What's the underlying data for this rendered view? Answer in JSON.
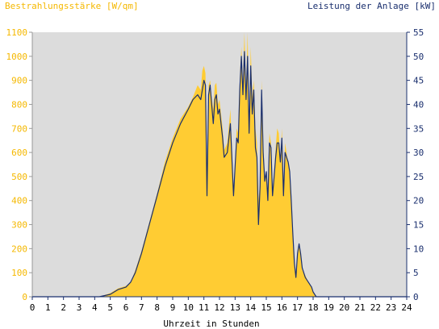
{
  "chart_data": {
    "type": "area",
    "title_left": "Bestrahlungsstärke [W/qm]",
    "title_right": "Leistung der Anlage [kW]",
    "xlabel": "Uhrzeit in Stunden",
    "xlim": [
      0,
      24
    ],
    "ylim_left": [
      0,
      1100
    ],
    "ylim_right": [
      0,
      55
    ],
    "x_ticks": [
      "0",
      "1",
      "2",
      "3",
      "4",
      "5",
      "6",
      "7",
      "8",
      "9",
      "10",
      "11",
      "12",
      "13",
      "14",
      "15",
      "16",
      "17",
      "18",
      "19",
      "20",
      "21",
      "22",
      "23",
      "24"
    ],
    "y_left_ticks": [
      "0",
      "100",
      "200",
      "300",
      "400",
      "500",
      "600",
      "700",
      "800",
      "900",
      "1000",
      "1100"
    ],
    "y_right_ticks": [
      "0",
      "5",
      "10",
      "15",
      "20",
      "25",
      "30",
      "35",
      "40",
      "45",
      "50",
      "55"
    ],
    "grid": false,
    "colors": {
      "irradiance_fill": "#ffcc33",
      "power_line": "#1a2f6e",
      "plot_background": "#dcdcdc",
      "left_axis_text": "#f5b800",
      "right_axis_text": "#1a2f6e"
    },
    "series": [
      {
        "axis": "left",
        "style": "area",
        "x": [
          4.3,
          5.0,
          5.5,
          6.0,
          6.3,
          6.6,
          7.0,
          7.5,
          8.0,
          8.5,
          9.0,
          9.5,
          10.0,
          10.3,
          10.6,
          10.8,
          10.9,
          11.0,
          11.1,
          11.2,
          11.3,
          11.4,
          11.5,
          11.6,
          11.7,
          11.8,
          11.9,
          12.0,
          12.1,
          12.2,
          12.3,
          12.5,
          12.7,
          12.9,
          13.0,
          13.1,
          13.2,
          13.3,
          13.4,
          13.5,
          13.6,
          13.7,
          13.8,
          13.9,
          14.0,
          14.1,
          14.2,
          14.3,
          14.4,
          14.5,
          14.6,
          14.7,
          14.8,
          14.9,
          15.0,
          15.1,
          15.2,
          15.3,
          15.4,
          15.5,
          15.6,
          15.7,
          15.8,
          15.9,
          16.0,
          16.1,
          16.2,
          16.3,
          16.4,
          16.5,
          16.6,
          16.7,
          16.8,
          16.9,
          17.0,
          17.1,
          17.2,
          17.3,
          17.5,
          17.7,
          17.9,
          18.0,
          18.1,
          18.2,
          18.3,
          18.4,
          18.5,
          18.6,
          18.7,
          18.8,
          18.9,
          19.0,
          19.2,
          19.5,
          19.8,
          20.0,
          20.3,
          20.5
        ],
        "y": [
          0,
          15,
          35,
          45,
          60,
          110,
          190,
          310,
          430,
          560,
          660,
          740,
          790,
          830,
          880,
          860,
          940,
          960,
          930,
          520,
          880,
          900,
          830,
          780,
          880,
          890,
          800,
          820,
          760,
          700,
          610,
          640,
          780,
          440,
          560,
          700,
          680,
          900,
          1040,
          880,
          1100,
          860,
          1100,
          720,
          1040,
          830,
          900,
          700,
          640,
          400,
          480,
          900,
          640,
          500,
          520,
          430,
          680,
          640,
          450,
          510,
          620,
          700,
          680,
          560,
          700,
          420,
          640,
          600,
          560,
          520,
          390,
          250,
          140,
          80,
          180,
          220,
          180,
          110,
          90,
          60,
          40,
          20,
          10,
          0,
          0,
          0,
          0,
          0,
          0,
          0,
          0,
          0,
          0,
          0,
          0,
          0,
          0,
          0
        ],
        "name": ""
      },
      {
        "axis": "right",
        "style": "line",
        "x": [
          4.3,
          5.0,
          5.5,
          6.0,
          6.3,
          6.6,
          7.0,
          7.5,
          8.0,
          8.5,
          9.0,
          9.5,
          10.0,
          10.3,
          10.6,
          10.8,
          10.9,
          11.0,
          11.1,
          11.2,
          11.3,
          11.4,
          11.5,
          11.6,
          11.7,
          11.8,
          11.9,
          12.0,
          12.1,
          12.2,
          12.3,
          12.5,
          12.7,
          12.9,
          13.0,
          13.1,
          13.2,
          13.3,
          13.4,
          13.5,
          13.6,
          13.7,
          13.8,
          13.9,
          14.0,
          14.1,
          14.2,
          14.3,
          14.4,
          14.5,
          14.6,
          14.7,
          14.8,
          14.9,
          15.0,
          15.1,
          15.2,
          15.3,
          15.4,
          15.5,
          15.6,
          15.7,
          15.8,
          15.9,
          16.0,
          16.1,
          16.2,
          16.3,
          16.4,
          16.5,
          16.6,
          16.7,
          16.8,
          16.9,
          17.0,
          17.1,
          17.2,
          17.3,
          17.5,
          17.7,
          17.9,
          18.0,
          18.1,
          18.2,
          18.3,
          18.4,
          18.5,
          18.6,
          18.7,
          18.8,
          18.9,
          19.0,
          19.2,
          19.5,
          19.8,
          20.0,
          20.3,
          20.5
        ],
        "y": [
          0,
          0.5,
          1.5,
          2,
          3,
          5,
          9,
          15,
          21,
          27,
          32,
          36,
          39,
          41,
          42,
          41,
          43,
          45,
          44,
          21,
          42,
          44,
          40,
          36,
          41,
          42,
          38,
          39,
          36,
          33,
          29,
          30,
          36,
          21,
          27,
          33,
          32,
          43,
          50,
          42,
          51,
          41,
          50,
          34,
          48,
          38,
          43,
          31,
          29,
          15,
          23,
          43,
          30,
          24,
          26,
          20,
          32,
          31,
          21,
          25,
          29,
          32,
          32,
          28,
          33,
          21,
          30,
          29,
          28,
          26,
          20,
          13,
          7,
          4,
          9,
          11,
          9,
          6,
          4,
          3,
          2,
          1,
          0.5,
          0,
          0,
          0,
          0,
          0,
          0,
          0,
          0,
          0,
          0,
          0,
          0,
          0,
          0,
          0
        ],
        "name": ""
      }
    ]
  }
}
